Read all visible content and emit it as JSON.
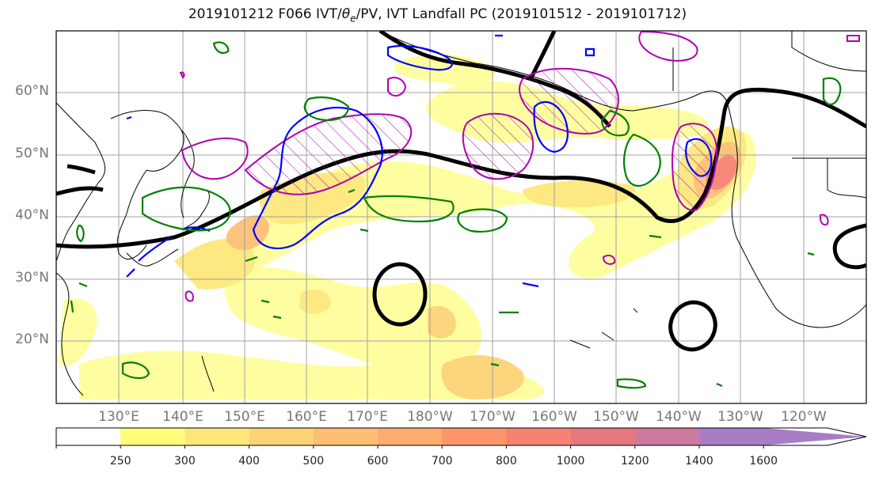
{
  "title": {
    "prefix": "2019101212 F066 IVT/",
    "theta_symbol": "θ",
    "theta_sub": "e",
    "suffix": "/PV, IVT Landfall PC (2019101512 - 2019101712)"
  },
  "lat_labels": [
    "60°N",
    "50°N",
    "40°N",
    "30°N",
    "20°N"
  ],
  "lon_labels": [
    "130°E",
    "140°E",
    "150°E",
    "160°E",
    "170°E",
    "180°W",
    "170°W",
    "160°W",
    "150°W",
    "140°W",
    "130°W",
    "120°W"
  ],
  "colorbar": {
    "ticks": [
      "250",
      "300",
      "400",
      "500",
      "600",
      "700",
      "800",
      "1000",
      "1200",
      "1400",
      "1600"
    ],
    "colors": [
      "#ffffff",
      "#fefe7c",
      "#fde77c",
      "#fdd377",
      "#fdbf74",
      "#fdac6f",
      "#fd956b",
      "#f78273",
      "#e6787f",
      "#cc7a9e",
      "#a87dc6"
    ]
  },
  "contour_colors": {
    "pv": "#008000",
    "theta_e": "#0000ff",
    "pc": "#b000b0",
    "height": "#000000"
  }
}
